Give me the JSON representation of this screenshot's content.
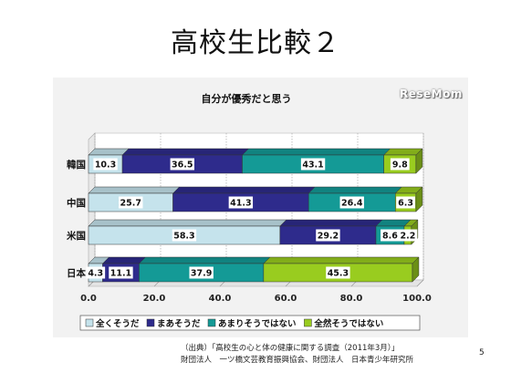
{
  "slide": {
    "title": "高校生比較２",
    "logo": "ReseMom",
    "source_line1": "（出典）「高校生の心と体の健康に関する調査（2011年3月）」",
    "source_line2": "財団法人　一ツ橋文芸教育振興協会、財団法人　日本青少年研究所",
    "page_number": "5"
  },
  "chart_data": {
    "type": "bar",
    "orientation": "horizontal",
    "stacked": true,
    "title": "自分が優秀だと思う",
    "categories": [
      "韓国",
      "中国",
      "米国",
      "日本"
    ],
    "series": [
      {
        "name": "全くそうだ",
        "values": [
          10.3,
          25.7,
          58.3,
          4.3
        ],
        "color": "#c5e3ec"
      },
      {
        "name": "まあそうだ",
        "values": [
          36.5,
          41.3,
          29.2,
          11.1
        ],
        "color": "#2e2b8c"
      },
      {
        "name": "あまりそうではない",
        "values": [
          43.1,
          26.4,
          8.6,
          37.9
        ],
        "color": "#149a96"
      },
      {
        "name": "全然そうではない",
        "values": [
          9.8,
          6.3,
          2.2,
          45.3
        ],
        "color": "#99cc1f"
      }
    ],
    "xlim": [
      0,
      100
    ],
    "xticks": [
      "0.0",
      "20.0",
      "40.0",
      "60.0",
      "80.0",
      "100.0"
    ],
    "legend_position": "bottom",
    "grid": true
  }
}
